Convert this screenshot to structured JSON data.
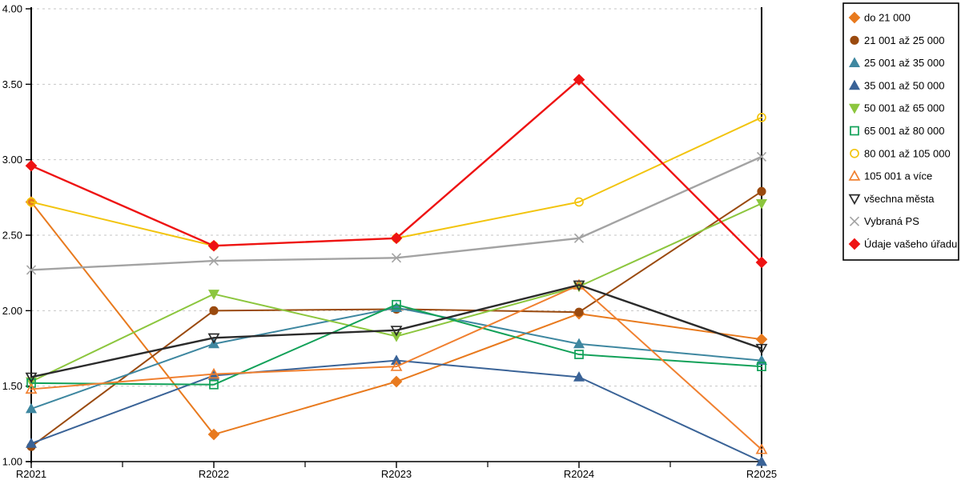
{
  "chart_data": {
    "type": "line",
    "title": "",
    "xlabel": "",
    "ylabel": "",
    "categories": [
      "R2021",
      "R2022",
      "R2023",
      "R2024",
      "R2025"
    ],
    "ylim": [
      1.0,
      4.0
    ],
    "y_tick_step": 0.5,
    "y_tick_labels": [
      "1.00",
      "1.50",
      "2.00",
      "2.50",
      "3.00",
      "3.50",
      "4.00"
    ],
    "grid": true,
    "grid_color": "#c6c6c6",
    "legend_position": "right",
    "series": [
      {
        "name": "do 21 000",
        "color": "#e87a1e",
        "marker": "diamond",
        "fill": "filled",
        "values": [
          2.72,
          1.18,
          1.53,
          1.98,
          1.81
        ]
      },
      {
        "name": "21 001 až 25 000",
        "color": "#9a4a0f",
        "marker": "circle",
        "fill": "filled",
        "values": [
          1.1,
          2.0,
          2.01,
          1.99,
          2.79
        ]
      },
      {
        "name": "25 001 až 35 000",
        "color": "#3e87a0",
        "marker": "triangle-up",
        "fill": "filled",
        "values": [
          1.35,
          1.78,
          2.02,
          1.78,
          1.67
        ]
      },
      {
        "name": "35 001 až 50 000",
        "color": "#3a6397",
        "marker": "triangle-up",
        "fill": "filled",
        "values": [
          1.12,
          1.57,
          1.67,
          1.56,
          1.0
        ]
      },
      {
        "name": "50 001 až 65 000",
        "color": "#8cc63e",
        "marker": "triangle-down",
        "fill": "filled",
        "values": [
          1.53,
          2.11,
          1.83,
          2.16,
          2.71
        ]
      },
      {
        "name": "65 001 až 80 000",
        "color": "#12a159",
        "marker": "square",
        "fill": "open",
        "values": [
          1.52,
          1.51,
          2.04,
          1.71,
          1.63
        ]
      },
      {
        "name": "80 001 až 105 000",
        "color": "#f2c40e",
        "marker": "circle",
        "fill": "open",
        "values": [
          2.72,
          2.43,
          2.48,
          2.72,
          3.28
        ]
      },
      {
        "name": "105 001 a více",
        "color": "#f08030",
        "marker": "triangle-up",
        "fill": "open",
        "values": [
          1.48,
          1.58,
          1.63,
          2.17,
          1.08
        ]
      },
      {
        "name": "všechna města",
        "color": "#2b2b2b",
        "marker": "triangle-down",
        "fill": "open",
        "values": [
          1.56,
          1.82,
          1.87,
          2.17,
          1.75
        ]
      },
      {
        "name": "Vybraná PS",
        "color": "#a3a3a3",
        "marker": "x",
        "fill": "open",
        "values": [
          2.27,
          2.33,
          2.35,
          2.48,
          3.02
        ]
      },
      {
        "name": "Údaje vašeho úřadu",
        "color": "#ee1313",
        "marker": "diamond",
        "fill": "filled",
        "values": [
          2.96,
          2.43,
          2.48,
          3.53,
          2.32
        ]
      }
    ]
  }
}
